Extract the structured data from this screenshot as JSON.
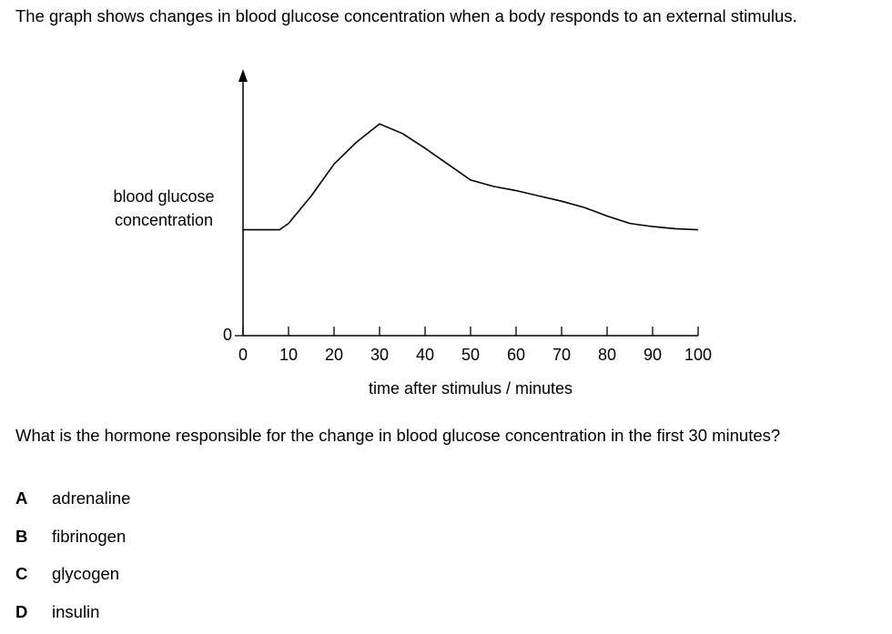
{
  "intro": "The graph shows changes in blood glucose concentration when a body responds to an external stimulus.",
  "chart_data": {
    "type": "line",
    "ylabel": "blood glucose concentration",
    "xlabel": "time after stimulus / minutes",
    "x": [
      0,
      8,
      10,
      15,
      20,
      25,
      30,
      35,
      40,
      45,
      50,
      55,
      60,
      65,
      70,
      75,
      80,
      85,
      90,
      95,
      100
    ],
    "values": [
      1.0,
      1.0,
      1.06,
      1.32,
      1.62,
      1.83,
      2.0,
      1.91,
      1.77,
      1.62,
      1.47,
      1.41,
      1.37,
      1.32,
      1.27,
      1.21,
      1.13,
      1.06,
      1.03,
      1.01,
      1.0
    ],
    "color": "#000000",
    "xlim": [
      0,
      100
    ],
    "ylim": [
      0,
      2.5
    ],
    "xticks": [
      0,
      10,
      20,
      30,
      40,
      50,
      60,
      70,
      80,
      90,
      100
    ],
    "yticks": [
      0
    ],
    "grid": false
  },
  "question": "What is the hormone responsible for the change in blood glucose concentration in the first 30 minutes?",
  "options": [
    {
      "letter": "A",
      "text": "adrenaline"
    },
    {
      "letter": "B",
      "text": "fibrinogen"
    },
    {
      "letter": "C",
      "text": "glycogen"
    },
    {
      "letter": "D",
      "text": "insulin"
    }
  ]
}
